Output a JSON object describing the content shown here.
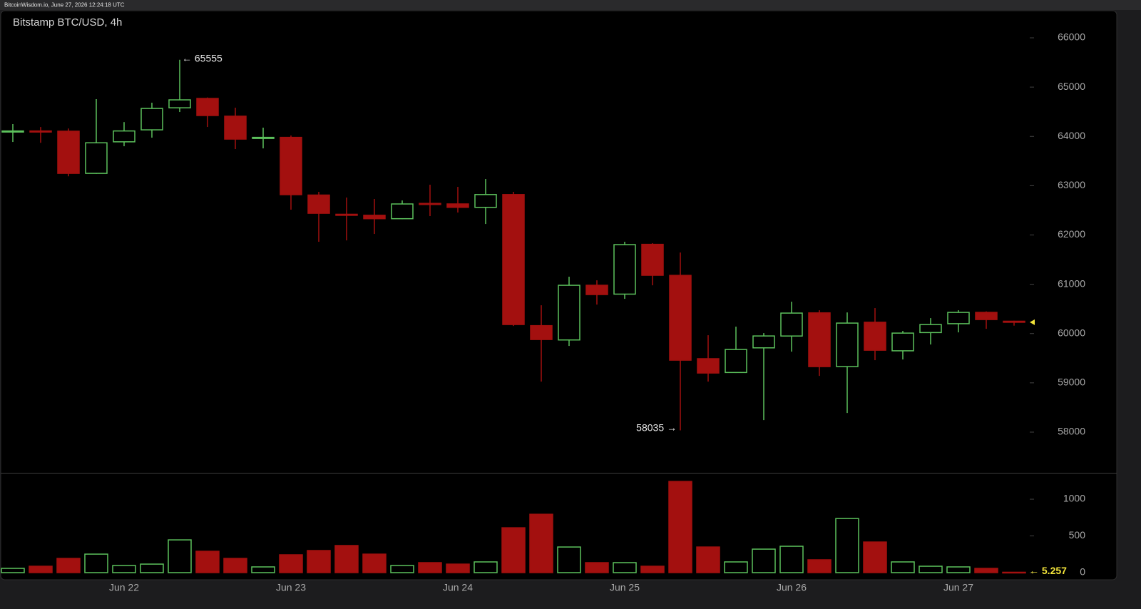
{
  "header": "BitcoinWisdom.io, June 27, 2026 12:24:18 UTC",
  "chart_data": [
    {
      "type": "candlestick",
      "title": "Bitstamp BTC/USD, 4h",
      "categories": [
        null,
        null,
        null,
        null,
        "Jun 22",
        null,
        null,
        null,
        null,
        null,
        "Jun 23",
        null,
        null,
        null,
        null,
        null,
        "Jun 24",
        null,
        null,
        null,
        null,
        null,
        "Jun 25",
        null,
        null,
        null,
        null,
        null,
        "Jun 26",
        null,
        null,
        null,
        null,
        null,
        "Jun 27",
        null,
        null
      ],
      "open": [
        64100,
        64110,
        64105,
        63250,
        63890,
        64133,
        64580,
        64770,
        64410,
        63960,
        63980,
        62810,
        62420,
        62400,
        62330,
        62640,
        62630,
        62560,
        62820,
        60160,
        59870,
        60980,
        60800,
        61810,
        61180,
        59490,
        59210,
        59710,
        59950,
        60420,
        59330,
        60230,
        59650,
        60020,
        60200,
        60430,
        60250
      ],
      "high": [
        64250,
        64190,
        64160,
        64756,
        64290,
        64683,
        65555,
        64790,
        64582,
        64177,
        64018,
        62875,
        62759,
        62730,
        62700,
        63019,
        62976,
        63135,
        62875,
        60574,
        61153,
        61080,
        61862,
        61833,
        61644,
        59966,
        60140,
        60009,
        60646,
        60473,
        60429,
        60516,
        60053,
        60313,
        60473,
        60450,
        60260
      ],
      "low": [
        63887,
        63870,
        63190,
        63240,
        63800,
        63974,
        64495,
        64191,
        63743,
        63757,
        62513,
        61862,
        61890,
        62021,
        62320,
        62383,
        62455,
        62223,
        60154,
        59025,
        59749,
        60588,
        60704,
        60979,
        58035,
        59025,
        59200,
        58244,
        59633,
        59141,
        58389,
        59460,
        59474,
        59778,
        60024,
        60096,
        60160
      ],
      "close": [
        64110,
        64100,
        63250,
        63870,
        64110,
        64567,
        64741,
        64423,
        63945,
        63980,
        62817,
        62440,
        62400,
        62330,
        62629,
        62620,
        62560,
        62820,
        60183,
        59879,
        60979,
        60791,
        61804,
        61182,
        59460,
        59199,
        59677,
        59951,
        60415,
        59329,
        60212,
        59662,
        60009,
        60183,
        60429,
        60284,
        60230
      ],
      "up_color": "#5cc15c",
      "down_color": "#a3100f",
      "high_label": "← 65555",
      "low_label": "58035 →",
      "ylim": [
        57175,
        66550
      ],
      "yticks": [
        58000,
        59000,
        60000,
        61000,
        62000,
        63000,
        64000,
        65000,
        66000
      ]
    },
    {
      "type": "bar",
      "values": [
        58,
        87,
        194,
        252,
        97,
        116,
        446,
        291,
        194,
        78,
        243,
        301,
        369,
        252,
        97,
        136,
        116,
        146,
        611,
        795,
        349,
        136,
        136,
        87,
        1242,
        349,
        146,
        320,
        359,
        175,
        737,
        417,
        146,
        87,
        78,
        58,
        5.257
      ],
      "value_labels": [
        null,
        null,
        null,
        null,
        null,
        null,
        null,
        null,
        null,
        null,
        null,
        null,
        null,
        null,
        null,
        null,
        null,
        null,
        null,
        null,
        null,
        null,
        null,
        null,
        null,
        null,
        null,
        null,
        null,
        null,
        null,
        null,
        null,
        null,
        null,
        null,
        "← 5.257"
      ],
      "label_color": "#f2e33a",
      "ylim": [
        0,
        1350
      ],
      "yticks": [
        0,
        500,
        1000
      ]
    }
  ]
}
